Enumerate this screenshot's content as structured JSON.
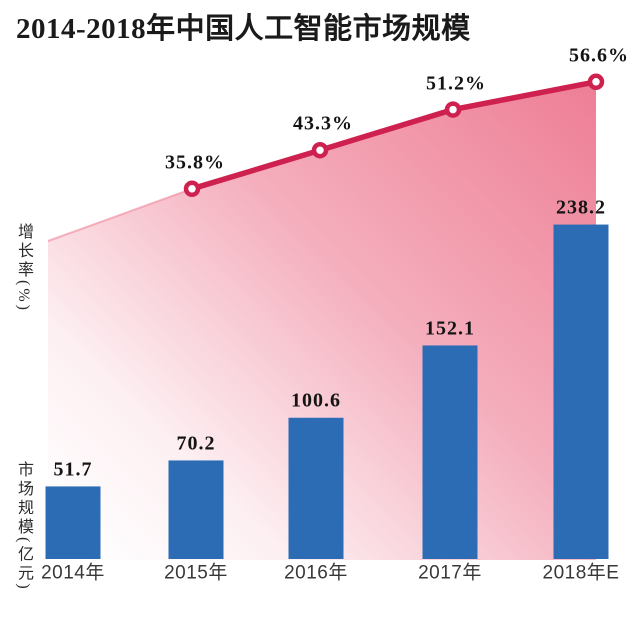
{
  "title": "2014-2018年中国人工智能市场规模",
  "axes": {
    "left_top_label": "增长率(%)",
    "left_bottom_label": "市场规模(亿元)"
  },
  "colors": {
    "bar": "#2b6cb5",
    "line": "#ce2150",
    "marker_fill": "#ffffff",
    "area_top": "#ee7e95",
    "area_bottom": "#ffffff",
    "title_text": "#1a1a1a",
    "value_text": "#141414",
    "axis_text": "#383838"
  },
  "chart_data": [
    {
      "type": "bar",
      "name": "市场规模",
      "unit": "亿元",
      "title": "2014-2018年中国人工智能市场规模",
      "categories": [
        "2014年",
        "2015年",
        "2016年",
        "2017年",
        "2018年E"
      ],
      "values": [
        51.7,
        70.2,
        100.6,
        152.1,
        238.2
      ],
      "labels": [
        "51.7",
        "70.2",
        "100.6",
        "152.1",
        "238.2"
      ],
      "xlabel": "",
      "ylabel": "市场规模(亿元)",
      "grid": false,
      "legend": "none"
    },
    {
      "type": "line",
      "name": "增长率",
      "unit": "%",
      "categories": [
        "2015年",
        "2016年",
        "2017年",
        "2018年E"
      ],
      "values": [
        35.8,
        43.3,
        51.2,
        56.6
      ],
      "labels": [
        "35.8%",
        "43.3%",
        "51.2%",
        "56.6%"
      ],
      "ylabel": "增长率(%)",
      "marker": "open-circle",
      "area_fill": true,
      "grid": false,
      "legend": "none"
    }
  ]
}
